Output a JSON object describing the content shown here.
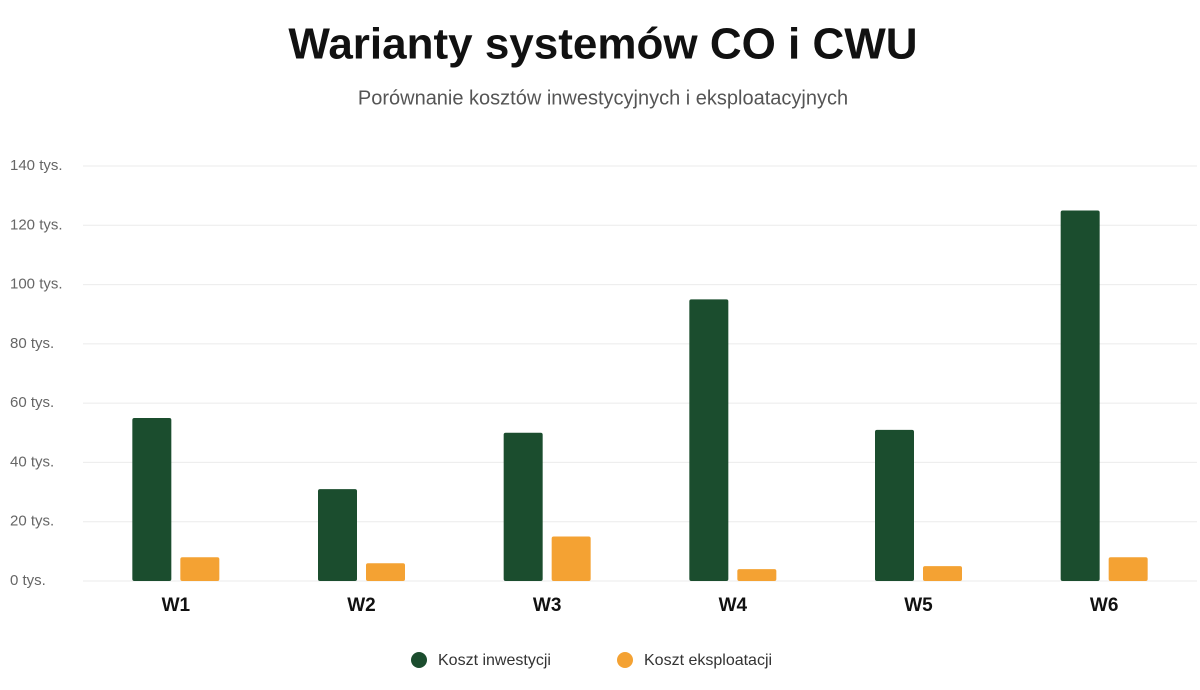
{
  "chart_data": {
    "type": "bar",
    "title": "Warianty systemów CO i CWU",
    "subtitle": "Porównanie kosztów inwestycyjnych i eksploatacyjnych",
    "categories": [
      "W1",
      "W2",
      "W3",
      "W4",
      "W5",
      "W6"
    ],
    "series": [
      {
        "name": "Koszt inwestycji",
        "color": "#1b4d2e",
        "values": [
          55,
          31,
          50,
          95,
          51,
          125
        ]
      },
      {
        "name": "Koszt eksploatacji",
        "color": "#f4a233",
        "values": [
          8,
          6,
          15,
          4,
          5,
          8
        ]
      }
    ],
    "ylim": [
      0,
      140
    ],
    "yticks": [
      {
        "value": 0,
        "label": "0 tys."
      },
      {
        "value": 20,
        "label": "20 tys."
      },
      {
        "value": 40,
        "label": "40 tys."
      },
      {
        "value": 60,
        "label": "60 tys."
      },
      {
        "value": 80,
        "label": "80 tys."
      },
      {
        "value": 100,
        "label": "100 tys."
      },
      {
        "value": 120,
        "label": "120 tys."
      },
      {
        "value": 140,
        "label": "140 tys."
      }
    ],
    "grid": true,
    "legend": "bottom"
  }
}
